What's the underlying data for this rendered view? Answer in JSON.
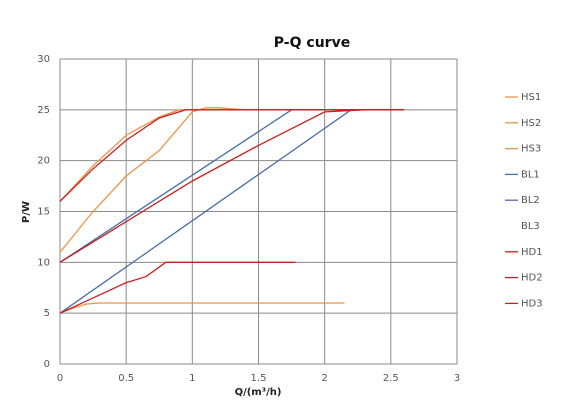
{
  "chart_data": {
    "type": "line",
    "title": "P-Q  curve",
    "x_label": "Q/(m³/h)",
    "y_label": "P/W",
    "xlim": [
      0,
      3
    ],
    "xticks": [
      0,
      0.5,
      1,
      1.5,
      2,
      2.5,
      3
    ],
    "ylim": [
      0,
      30
    ],
    "yticks": [
      0,
      5,
      10,
      15,
      20,
      25,
      30
    ],
    "grid": true,
    "legend": "right",
    "series": [
      {
        "name": "HS1",
        "color": "#e8954a",
        "x": [
          0,
          0.1,
          0.2,
          0.3,
          2.15
        ],
        "values": [
          5,
          5.5,
          5.9,
          6,
          6
        ]
      },
      {
        "name": "HS2",
        "color": "#e8954a",
        "x": [
          0,
          0.25,
          0.5,
          0.75,
          0.9,
          1.2,
          2.6
        ],
        "values": [
          16,
          19.5,
          22.5,
          24.3,
          25,
          25,
          25
        ]
      },
      {
        "name": "HS3",
        "color": "#e8954a",
        "x": [
          0,
          0.25,
          0.5,
          0.75,
          1,
          1.1,
          1.2,
          1.4,
          2.6
        ],
        "values": [
          11,
          15,
          18.5,
          21,
          24.8,
          25.2,
          25.2,
          25,
          25
        ]
      },
      {
        "name": "BL1",
        "color": "#4a6fa8",
        "x": [
          0,
          1.75,
          2.6
        ],
        "values": [
          10,
          25,
          25
        ]
      },
      {
        "name": "BL2",
        "color": "#4a6fa8",
        "x": [
          0,
          2.2,
          2.6
        ],
        "values": [
          5,
          25,
          25
        ]
      },
      {
        "name": "BL3",
        "color": "#ffffff",
        "x": [],
        "values": []
      },
      {
        "name": "HD1",
        "color": "#c8201e",
        "x": [
          0,
          0.25,
          0.5,
          0.65,
          0.8,
          0.9,
          1.78
        ],
        "values": [
          5,
          6.5,
          8,
          8.6,
          10,
          10,
          10
        ]
      },
      {
        "name": "HD2",
        "color": "#c8201e",
        "x": [
          0,
          0.5,
          1,
          1.5,
          2,
          2.3,
          2.6
        ],
        "values": [
          10,
          14,
          18,
          21.5,
          24.8,
          25,
          25
        ]
      },
      {
        "name": "HD3",
        "color": "#c8201e",
        "x": [
          0,
          0.25,
          0.5,
          0.75,
          0.95,
          2.6
        ],
        "values": [
          16,
          19.2,
          22,
          24.2,
          25,
          25
        ]
      }
    ]
  }
}
